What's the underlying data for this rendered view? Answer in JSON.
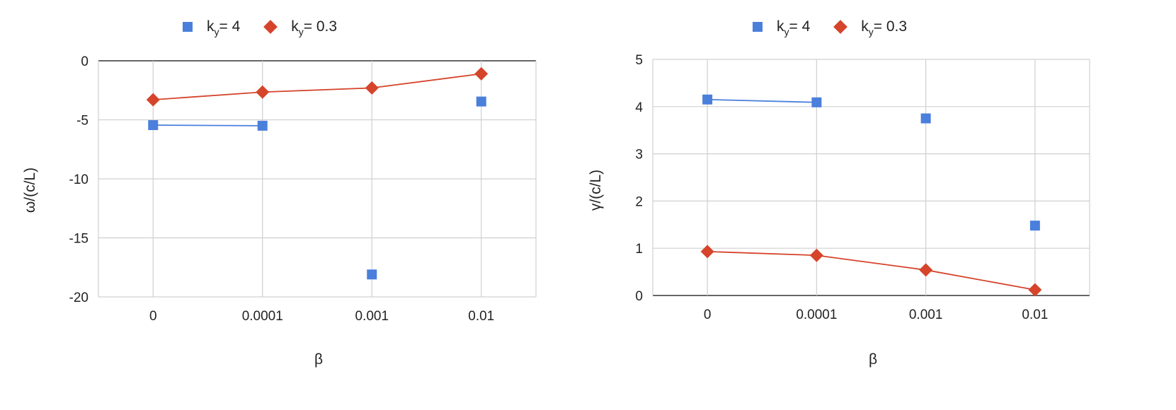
{
  "colors": {
    "ky4": "#4a7fdc",
    "ky03": "#d5442b",
    "grid": "#d0d0d0",
    "axis": "#333333"
  },
  "legend": {
    "k_letter": "k",
    "subscript": "y",
    "ky4_value": "= 4",
    "ky03_value": "= 0.3"
  },
  "chart_data": [
    {
      "type": "line",
      "title": "",
      "xlabel": "β",
      "ylabel": "ω/(c/L)",
      "categories": [
        "0",
        "0.0001",
        "0.001",
        "0.01"
      ],
      "ylim": [
        -20,
        0
      ],
      "yticks": [
        0,
        -5,
        -10,
        -15,
        -20
      ],
      "grid": true,
      "legend_position": "top",
      "series": [
        {
          "name": "k_y = 4",
          "marker": "square",
          "color": "#4a7fdc",
          "values": [
            -5.45,
            -5.5,
            -18.1,
            -3.45
          ],
          "line_segments": [
            [
              0,
              1
            ]
          ]
        },
        {
          "name": "k_y = 0.3",
          "marker": "diamond",
          "color": "#d5442b",
          "values": [
            -3.3,
            -2.65,
            -2.3,
            -1.1
          ],
          "line_segments": [
            [
              0,
              1
            ],
            [
              1,
              2
            ],
            [
              2,
              3
            ]
          ]
        }
      ]
    },
    {
      "type": "line",
      "title": "",
      "xlabel": "β",
      "ylabel": "γ/(c/L)",
      "categories": [
        "0",
        "0.0001",
        "0.001",
        "0.01"
      ],
      "ylim": [
        0,
        5
      ],
      "yticks": [
        5,
        4,
        3,
        2,
        1,
        0
      ],
      "grid": true,
      "legend_position": "top",
      "series": [
        {
          "name": "k_y = 4",
          "marker": "square",
          "color": "#4a7fdc",
          "values": [
            4.15,
            4.09,
            3.75,
            1.48
          ],
          "line_segments": [
            [
              0,
              1
            ]
          ]
        },
        {
          "name": "k_y = 0.3",
          "marker": "diamond",
          "color": "#d5442b",
          "values": [
            0.93,
            0.85,
            0.54,
            0.12
          ],
          "line_segments": [
            [
              0,
              1
            ],
            [
              1,
              2
            ],
            [
              2,
              3
            ]
          ]
        }
      ]
    }
  ]
}
